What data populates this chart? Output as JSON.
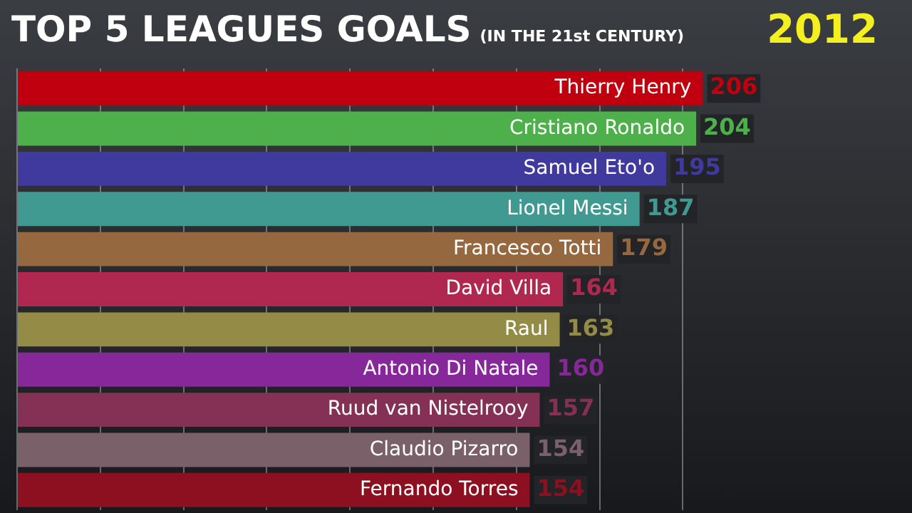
{
  "chart_data": {
    "type": "bar",
    "orientation": "horizontal",
    "title": "TOP 5 LEAGUES GOALS",
    "subtitle": "(IN THE 21st CENTURY)",
    "annotations": [
      "2012"
    ],
    "categories": [
      "Thierry Henry",
      "Cristiano Ronaldo",
      "Samuel Eto'o",
      "Lionel Messi",
      "Francesco Totti",
      "David Villa",
      "Raul",
      "Antonio Di Natale",
      "Ruud van Nistelrooy",
      "Claudio Pizarro",
      "Fernando Torres"
    ],
    "values": [
      206,
      204,
      195,
      187,
      179,
      164,
      163,
      160,
      157,
      154,
      154
    ],
    "colors": [
      "#c0000e",
      "#4db04a",
      "#413a9e",
      "#419a92",
      "#956840",
      "#b0284f",
      "#948c46",
      "#86289a",
      "#853055",
      "#7a6068",
      "#8c1020"
    ],
    "xticks": [
      {
        "value": 0,
        "label": null
      },
      {
        "value": 25,
        "label": null
      },
      {
        "value": 50,
        "label": null
      },
      {
        "value": 75,
        "label": null
      },
      {
        "value": 100,
        "label": null
      },
      {
        "value": 125,
        "label": null
      },
      {
        "value": 150,
        "label": null
      },
      {
        "value": 175,
        "label": null
      },
      {
        "value": 200,
        "label": null
      }
    ],
    "grid": "x",
    "data_labels": true,
    "legend": false
  }
}
